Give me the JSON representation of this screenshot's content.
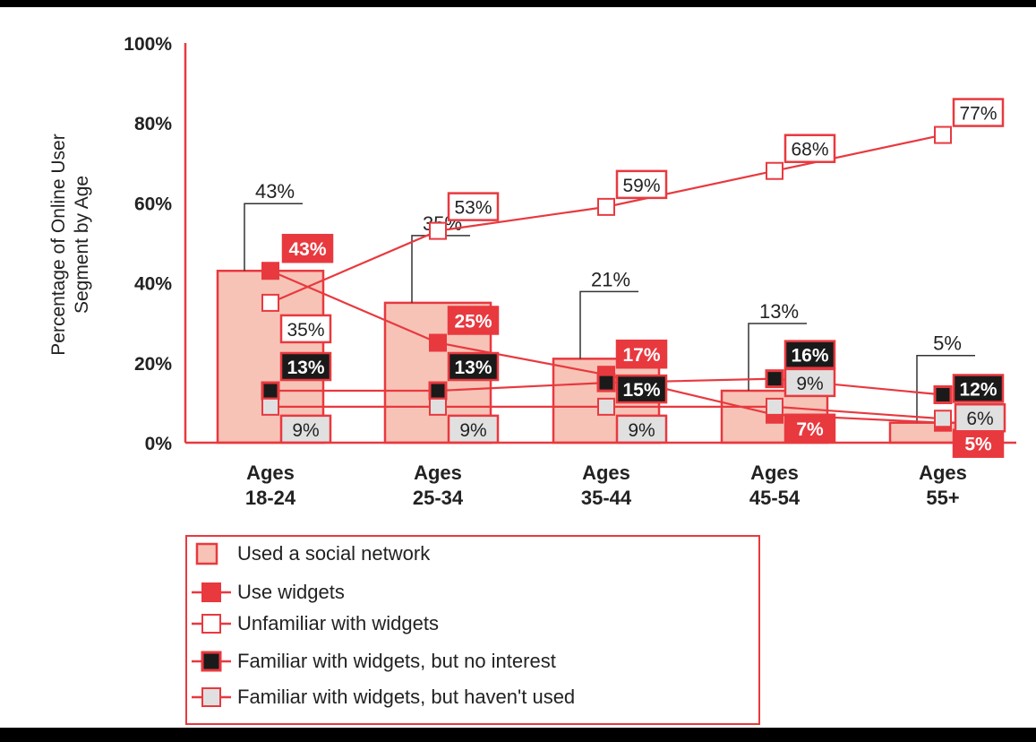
{
  "colors": {
    "accent": "#e8393f",
    "bar_fill": "#f7c3b7",
    "dark": "#1a1a1a",
    "light_gray": "#e0e0e0",
    "white": "#ffffff",
    "text": "#222222"
  },
  "chart_data": {
    "type": "bar",
    "ylabel": "Percentage of Online User Segment by Age",
    "ylim": [
      0,
      100
    ],
    "yticks": [
      0,
      20,
      40,
      60,
      80,
      100
    ],
    "ytick_labels": [
      "0%",
      "20%",
      "40%",
      "60%",
      "80%",
      "100%"
    ],
    "categories": [
      {
        "line1": "Ages",
        "line2": "18-24"
      },
      {
        "line1": "Ages",
        "line2": "25-34"
      },
      {
        "line1": "Ages",
        "line2": "35-44"
      },
      {
        "line1": "Ages",
        "line2": "45-54"
      },
      {
        "line1": "Ages",
        "line2": "55+"
      }
    ],
    "series": [
      {
        "name": "Used a social network",
        "kind": "bar",
        "values": [
          43,
          35,
          21,
          13,
          5
        ],
        "labels": [
          "43%",
          "35%",
          "21%",
          "13%",
          "5%"
        ]
      },
      {
        "name": "Use widgets",
        "kind": "line",
        "marker": "red",
        "values": [
          43,
          25,
          17,
          7,
          5
        ],
        "labels": [
          "43%",
          "25%",
          "17%",
          "7%",
          "5%"
        ]
      },
      {
        "name": "Unfamiliar with widgets",
        "kind": "line",
        "marker": "white",
        "values": [
          35,
          53,
          59,
          68,
          77
        ],
        "labels": [
          "35%",
          "53%",
          "59%",
          "68%",
          "77%"
        ]
      },
      {
        "name": "Familiar with widgets, but no interest",
        "kind": "line",
        "marker": "black",
        "values": [
          13,
          13,
          15,
          16,
          12
        ],
        "labels": [
          "13%",
          "13%",
          "15%",
          "16%",
          "12%"
        ]
      },
      {
        "name": "Familiar with widgets, but haven't used",
        "kind": "line",
        "marker": "gray",
        "values": [
          9,
          9,
          9,
          9,
          6
        ],
        "labels": [
          "9%",
          "9%",
          "9%",
          "9%",
          "6%"
        ]
      }
    ],
    "legend_position": "bottom-left",
    "grid": false
  }
}
